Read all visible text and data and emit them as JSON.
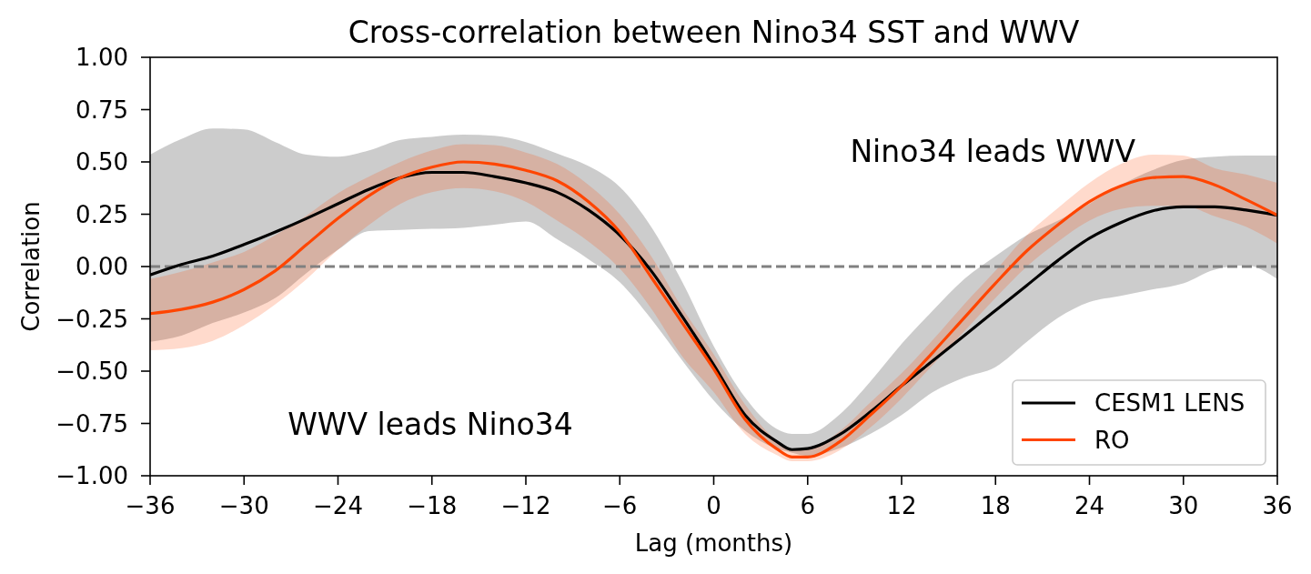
{
  "chart_data": {
    "type": "line",
    "title": "Cross-correlation between Nino34 SST and WWV",
    "xlabel": "Lag (months)",
    "ylabel": "Correlation",
    "x": [
      -36,
      -34,
      -32,
      -30,
      -28,
      -26,
      -24,
      -22,
      -20,
      -18,
      -16,
      -14,
      -12,
      -10,
      -8,
      -6,
      -4,
      -2,
      0,
      2,
      4,
      5,
      6,
      8,
      10,
      12,
      14,
      16,
      18,
      20,
      22,
      24,
      26,
      28,
      30,
      32,
      34,
      36
    ],
    "series": [
      {
        "name": "CESM1 LENS",
        "color": "#000000",
        "values": [
          -0.04,
          0.01,
          0.05,
          0.105,
          0.165,
          0.23,
          0.3,
          0.37,
          0.425,
          0.45,
          0.45,
          0.43,
          0.4,
          0.355,
          0.27,
          0.15,
          -0.02,
          -0.24,
          -0.47,
          -0.71,
          -0.835,
          -0.875,
          -0.87,
          -0.805,
          -0.695,
          -0.57,
          -0.45,
          -0.33,
          -0.21,
          -0.09,
          0.03,
          0.135,
          0.21,
          0.265,
          0.285,
          0.285,
          0.27,
          0.245
        ],
        "upper": [
          0.535,
          0.61,
          0.66,
          0.655,
          0.595,
          0.535,
          0.525,
          0.555,
          0.605,
          0.62,
          0.63,
          0.625,
          0.595,
          0.54,
          0.48,
          0.38,
          0.19,
          -0.075,
          -0.38,
          -0.625,
          -0.775,
          -0.8,
          -0.8,
          -0.71,
          -0.55,
          -0.37,
          -0.21,
          -0.06,
          0.05,
          0.15,
          0.22,
          0.3,
          0.39,
          0.46,
          0.51,
          0.525,
          0.53,
          0.53
        ],
        "lower": [
          -0.36,
          -0.33,
          -0.27,
          -0.22,
          -0.15,
          -0.03,
          0.08,
          0.17,
          0.175,
          0.18,
          0.185,
          0.2,
          0.215,
          0.13,
          0.035,
          -0.075,
          -0.25,
          -0.45,
          -0.64,
          -0.785,
          -0.87,
          -0.89,
          -0.905,
          -0.87,
          -0.8,
          -0.71,
          -0.6,
          -0.53,
          -0.48,
          -0.36,
          -0.245,
          -0.17,
          -0.14,
          -0.11,
          -0.08,
          -0.015,
          0.005,
          -0.06
        ]
      },
      {
        "name": "RO",
        "color": "#ff4500",
        "values": [
          -0.225,
          -0.205,
          -0.17,
          -0.11,
          -0.02,
          0.105,
          0.23,
          0.34,
          0.425,
          0.475,
          0.5,
          0.49,
          0.46,
          0.41,
          0.31,
          0.165,
          -0.05,
          -0.27,
          -0.49,
          -0.73,
          -0.87,
          -0.91,
          -0.91,
          -0.84,
          -0.71,
          -0.57,
          -0.41,
          -0.245,
          -0.08,
          0.075,
          0.2,
          0.31,
          0.385,
          0.425,
          0.43,
          0.39,
          0.32,
          0.245
        ],
        "upper": [
          -0.06,
          -0.025,
          0.02,
          0.07,
          0.15,
          0.245,
          0.35,
          0.43,
          0.5,
          0.555,
          0.585,
          0.58,
          0.545,
          0.49,
          0.39,
          0.25,
          0.05,
          -0.2,
          -0.42,
          -0.66,
          -0.83,
          -0.87,
          -0.87,
          -0.79,
          -0.65,
          -0.51,
          -0.35,
          -0.18,
          -0.02,
          0.15,
          0.28,
          0.4,
          0.49,
          0.535,
          0.53,
          0.47,
          0.44,
          0.4
        ],
        "lower": [
          -0.4,
          -0.39,
          -0.355,
          -0.28,
          -0.18,
          -0.06,
          0.08,
          0.2,
          0.3,
          0.355,
          0.375,
          0.36,
          0.31,
          0.22,
          0.12,
          -0.01,
          -0.2,
          -0.43,
          -0.6,
          -0.8,
          -0.9,
          -0.93,
          -0.93,
          -0.88,
          -0.77,
          -0.63,
          -0.47,
          -0.31,
          -0.15,
          0.0,
          0.12,
          0.22,
          0.275,
          0.29,
          0.29,
          0.24,
          0.19,
          0.11
        ]
      }
    ],
    "xlim": [
      -36,
      36
    ],
    "xticks": [
      {
        "value": -36,
        "label": "−36"
      },
      {
        "value": -30,
        "label": "−30"
      },
      {
        "value": -24,
        "label": "−24"
      },
      {
        "value": -18,
        "label": "−18"
      },
      {
        "value": -12,
        "label": "−12"
      },
      {
        "value": -6,
        "label": "−6"
      },
      0,
      6,
      12,
      18,
      24,
      30,
      36
    ],
    "ylim": [
      -1,
      1
    ],
    "yticks": [
      {
        "value": -1,
        "label": "−1.00"
      },
      {
        "value": -0.75,
        "label": "−0.75"
      },
      {
        "value": -0.5,
        "label": "−0.50"
      },
      {
        "value": -0.25,
        "label": "−0.25"
      },
      {
        "value": 0,
        "label": "0.00"
      },
      0.25,
      {
        "value": 0.5,
        "label": "0.50"
      },
      0.75,
      {
        "value": 1,
        "label": "1.00"
      }
    ],
    "ref_lines": [
      {
        "axis": "y",
        "value": 0,
        "color": "#808080",
        "line_style": "dashed"
      }
    ],
    "annotations": [
      "Nino34 leads WWV",
      "WWV leads Nino34"
    ],
    "legend": "bottom right"
  }
}
